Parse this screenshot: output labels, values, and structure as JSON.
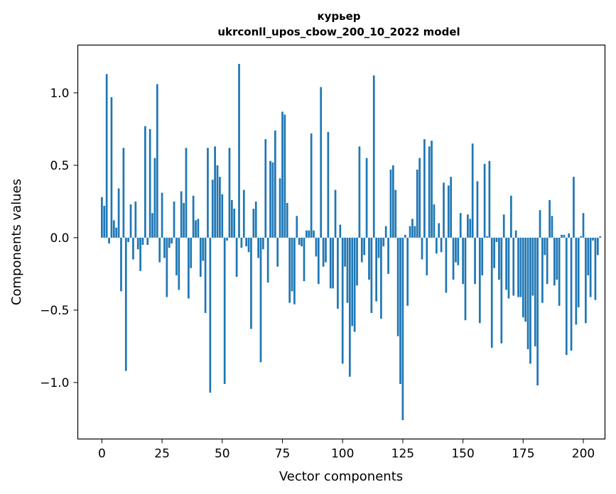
{
  "chart_data": {
    "type": "bar",
    "title": "курьер",
    "subtitle": "ukrconll_upos_cbow_200_10_2022 model",
    "xlabel": "Vector components",
    "ylabel": "Components values",
    "xlim": [
      -10,
      209
    ],
    "ylim": [
      -1.39,
      1.33
    ],
    "xticks": [
      0,
      25,
      50,
      75,
      100,
      125,
      150,
      175,
      200
    ],
    "xtick_labels": [
      "0",
      "25",
      "50",
      "75",
      "100",
      "125",
      "150",
      "175",
      "200"
    ],
    "yticks": [
      -1.0,
      -0.5,
      0.0,
      0.5,
      1.0
    ],
    "ytick_labels": [
      "−1.0",
      "−0.5",
      "0.0",
      "0.5",
      "1.0"
    ],
    "bar_color": "#1f77b4",
    "series": [
      {
        "name": "курьер",
        "values": [
          0.28,
          0.22,
          1.13,
          -0.04,
          0.97,
          0.12,
          0.07,
          0.34,
          -0.37,
          0.62,
          -0.92,
          -0.03,
          0.23,
          -0.15,
          0.25,
          -0.08,
          -0.23,
          -0.05,
          0.77,
          -0.05,
          0.75,
          0.17,
          0.55,
          1.06,
          -0.17,
          0.31,
          -0.14,
          -0.41,
          -0.07,
          -0.04,
          0.25,
          -0.26,
          -0.36,
          0.32,
          0.24,
          0.62,
          -0.42,
          -0.21,
          0.29,
          0.12,
          0.13,
          -0.27,
          -0.16,
          -0.52,
          0.62,
          -1.07,
          0.4,
          0.63,
          0.5,
          0.42,
          0.3,
          -1.01,
          -0.02,
          0.62,
          0.26,
          0.2,
          -0.27,
          1.2,
          -0.07,
          0.33,
          -0.06,
          -0.1,
          -0.63,
          0.2,
          0.25,
          -0.14,
          -0.86,
          -0.08,
          0.68,
          -0.31,
          0.53,
          0.52,
          0.74,
          -0.2,
          0.41,
          0.87,
          0.85,
          0.24,
          -0.45,
          -0.37,
          -0.46,
          0.15,
          -0.05,
          -0.06,
          -0.3,
          0.05,
          0.05,
          0.72,
          0.05,
          -0.13,
          -0.32,
          1.04,
          -0.2,
          -0.17,
          0.73,
          -0.35,
          -0.35,
          0.33,
          -0.49,
          0.09,
          -0.87,
          -0.2,
          -0.45,
          -0.96,
          -0.61,
          -0.65,
          -0.33,
          0.63,
          -0.17,
          -0.12,
          0.55,
          -0.29,
          -0.52,
          1.12,
          -0.44,
          -0.14,
          -0.56,
          -0.06,
          0.08,
          -0.25,
          0.47,
          0.5,
          0.33,
          -0.68,
          -1.01,
          -1.26,
          0.02,
          -0.47,
          0.08,
          0.13,
          0.08,
          0.47,
          0.55,
          -0.15,
          0.68,
          -0.26,
          0.63,
          0.67,
          0.23,
          -0.11,
          0.1,
          -0.1,
          0.38,
          -0.38,
          0.36,
          0.42,
          -0.29,
          -0.17,
          -0.19,
          0.17,
          -0.32,
          -0.57,
          0.16,
          0.13,
          0.65,
          -0.32,
          0.39,
          -0.59,
          -0.26,
          0.51,
          0.01,
          0.53,
          -0.76,
          -0.21,
          -0.03,
          -0.29,
          -0.73,
          0.16,
          -0.36,
          -0.42,
          0.29,
          -0.4,
          0.05,
          -0.41,
          -0.41,
          -0.55,
          -0.58,
          -0.77,
          -0.87,
          -0.4,
          -0.75,
          -1.02,
          0.19,
          -0.45,
          -0.12,
          -0.32,
          0.26,
          0.15,
          -0.33,
          -0.29,
          -0.47,
          0.02,
          0.02,
          -0.81,
          0.03,
          -0.78,
          0.42,
          -0.6,
          -0.48,
          0.01,
          0.17,
          -0.59,
          -0.26,
          -0.41,
          -0.02,
          -0.43,
          -0.12,
          0.01
        ]
      }
    ]
  }
}
